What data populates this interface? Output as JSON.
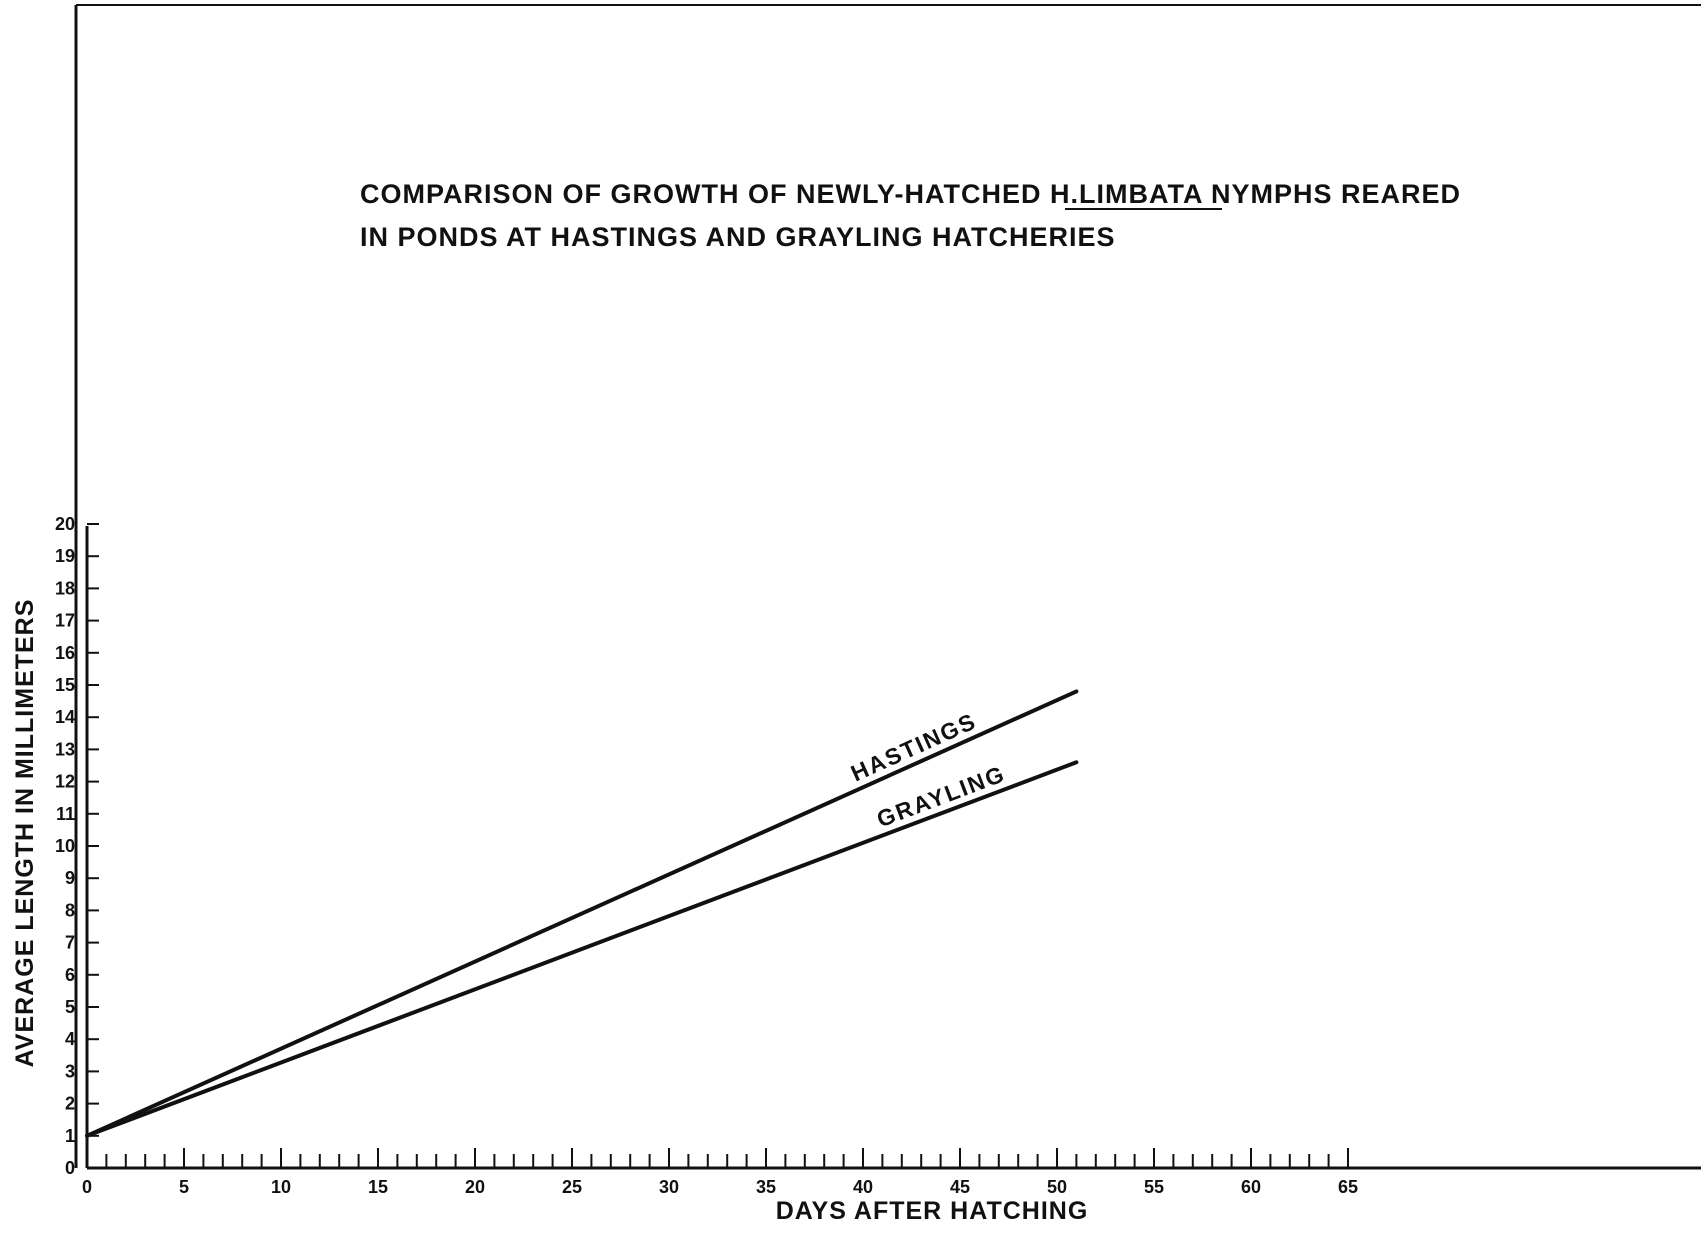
{
  "chart_data": {
    "type": "line",
    "title_lines": [
      "COMPARISON OF GROWTH OF NEWLY-HATCHED H.LIMBATA NYMPHS REARED",
      "IN PONDS AT HASTINGS AND GRAYLING HATCHERIES"
    ],
    "underlined_term": "H.LIMBATA",
    "xlabel": "DAYS AFTER HATCHING",
    "ylabel": "AVERAGE LENGTH IN MILLIMETERS",
    "xlim": [
      0,
      65
    ],
    "ylim": [
      0,
      20
    ],
    "x_ticks": [
      0,
      5,
      10,
      15,
      20,
      25,
      30,
      35,
      40,
      45,
      50,
      55,
      60,
      65
    ],
    "x_tick_labels": [
      "0",
      "5",
      "10",
      "15",
      "20",
      "25",
      "30",
      "35",
      "40",
      "45",
      "50",
      "55",
      "60",
      "65"
    ],
    "y_ticks": [
      0,
      1,
      2,
      3,
      4,
      5,
      6,
      7,
      8,
      9,
      10,
      11,
      12,
      13,
      14,
      15,
      16,
      17,
      18,
      19,
      20
    ],
    "y_tick_labels": [
      "0",
      "1",
      "2",
      "3",
      "4",
      "5",
      "6",
      "7",
      "8",
      "9",
      "10",
      "11",
      "12",
      "13",
      "14",
      "15",
      "16",
      "17",
      "18",
      "19",
      "20"
    ],
    "grid": false,
    "legend": "none",
    "series": [
      {
        "name": "HASTINGS",
        "x": [
          0,
          51
        ],
        "y": [
          1.0,
          14.8
        ]
      },
      {
        "name": "GRAYLING",
        "x": [
          0,
          51
        ],
        "y": [
          1.0,
          12.6
        ]
      }
    ],
    "line_color": "#111111"
  }
}
